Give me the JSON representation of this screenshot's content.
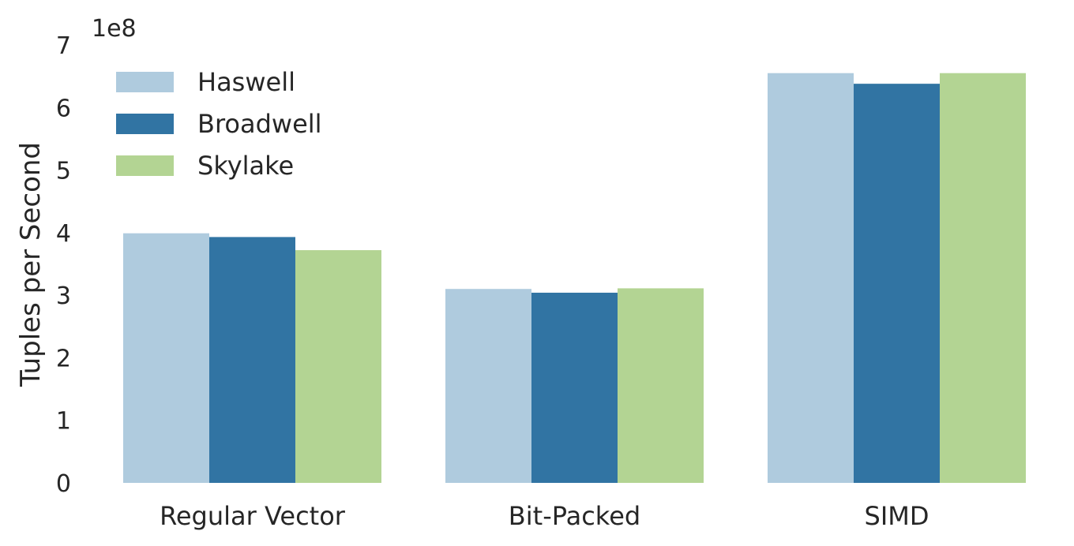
{
  "chart_data": {
    "type": "bar",
    "categories": [
      "Regular Vector",
      "Bit-Packed",
      "SIMD"
    ],
    "series": [
      {
        "name": "Haswell",
        "color": "#afcbde",
        "values": [
          399000000,
          310000000,
          655000000
        ]
      },
      {
        "name": "Broadwell",
        "color": "#3174a3",
        "values": [
          393000000,
          304000000,
          638000000
        ]
      },
      {
        "name": "Skylake",
        "color": "#b3d493",
        "values": [
          372000000,
          311000000,
          655000000
        ]
      }
    ],
    "title": "",
    "xlabel": "",
    "ylabel": "Tuples per Second",
    "ylim": [
      0,
      700000000
    ],
    "yticks": [
      "0",
      "1",
      "2",
      "3",
      "4",
      "5",
      "6",
      "7"
    ],
    "y_offset_label": "1e8",
    "grid": false,
    "legend_position": "top-left"
  }
}
